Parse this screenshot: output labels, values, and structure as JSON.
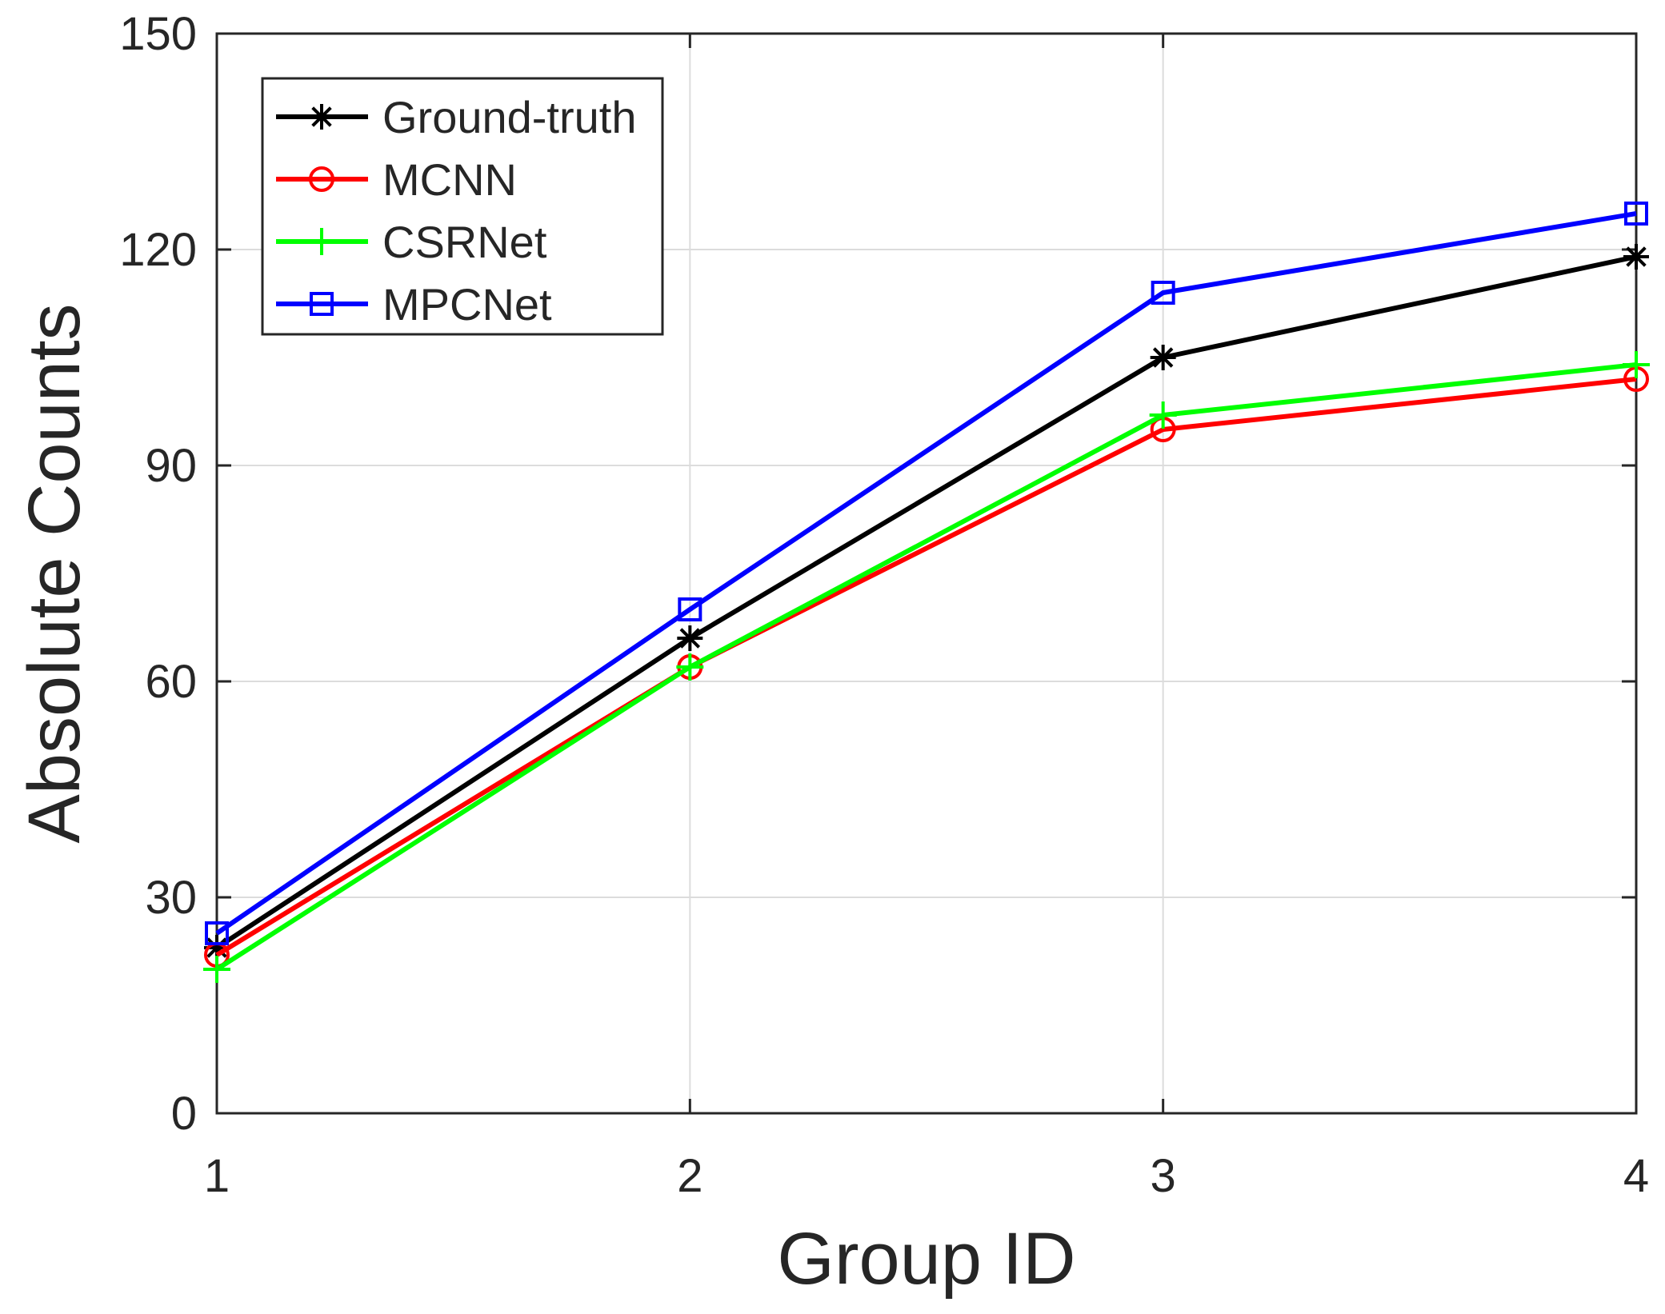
{
  "chart_data": {
    "type": "line",
    "title": "",
    "xlabel": "Group ID",
    "ylabel": "Absolute Counts",
    "x": [
      1,
      2,
      3,
      4
    ],
    "xlim": [
      1,
      4
    ],
    "ylim": [
      0,
      150
    ],
    "xticks": [
      1,
      2,
      3,
      4
    ],
    "yticks": [
      0,
      30,
      60,
      90,
      120,
      150
    ],
    "grid": true,
    "legend_location": "top-left",
    "series": [
      {
        "name": "Ground-truth",
        "color": "#000000",
        "marker": "asterisk",
        "values": [
          23,
          66,
          105,
          119
        ]
      },
      {
        "name": "MCNN",
        "color": "#ff0000",
        "marker": "circle",
        "values": [
          22,
          62,
          95,
          102
        ]
      },
      {
        "name": "CSRNet",
        "color": "#00ff00",
        "marker": "plus",
        "values": [
          20,
          62,
          97,
          104
        ]
      },
      {
        "name": "MPCNet",
        "color": "#0000ff",
        "marker": "square",
        "values": [
          25,
          70,
          114,
          125
        ]
      }
    ]
  }
}
